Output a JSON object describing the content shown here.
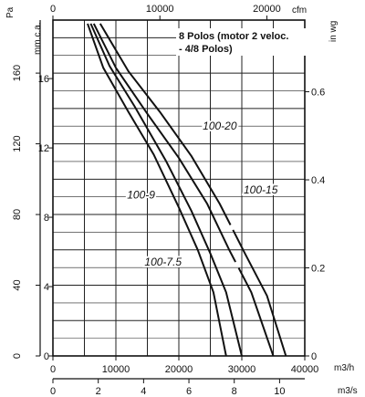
{
  "chart_data": {
    "type": "line",
    "note_lines": [
      "8 Polos (motor 2 veloc.",
      "- 4/8 Polos)"
    ],
    "axes": {
      "pa": {
        "unit": "Pa",
        "ticks": [
          "0",
          "40",
          "80",
          "120",
          "160"
        ],
        "values": [
          0,
          40,
          80,
          120,
          160
        ],
        "ylim": [
          0,
          190
        ]
      },
      "mmca": {
        "unit": "mm.c.a.",
        "ticks": [
          "0",
          "4",
          "8",
          "12",
          "16"
        ],
        "values": [
          0,
          4,
          8,
          12,
          16
        ]
      },
      "inwg": {
        "unit": "in wg",
        "ticks": [
          "0",
          "0.2",
          "0.4",
          "0.6"
        ],
        "values": [
          0,
          0.2,
          0.4,
          0.6
        ]
      },
      "cfm": {
        "unit": "cfm",
        "ticks": [
          "0",
          "10000",
          "20000"
        ],
        "values": [
          0,
          10000,
          20000
        ]
      },
      "m3h": {
        "unit": "m3/h",
        "ticks": [
          "0",
          "10000",
          "20000",
          "30000",
          "40000"
        ],
        "values": [
          0,
          10000,
          20000,
          30000,
          40000
        ],
        "xlim": [
          0,
          40000
        ]
      },
      "m3s": {
        "unit": "m3/s",
        "ticks": [
          "0",
          "2",
          "4",
          "6",
          "8",
          "10"
        ],
        "values": [
          0,
          2,
          4,
          6,
          8,
          10
        ]
      }
    },
    "grid": true,
    "series": [
      {
        "name": "100-7.5",
        "points": [
          [
            5500,
            188
          ],
          [
            8000,
            163
          ],
          [
            12000,
            138
          ],
          [
            16000,
            114
          ],
          [
            20000,
            84
          ],
          [
            23000,
            60
          ],
          [
            25500,
            36
          ],
          [
            27500,
            0
          ]
        ]
      },
      {
        "name": "100-9",
        "points": [
          [
            6000,
            188
          ],
          [
            9000,
            164
          ],
          [
            13000,
            141
          ],
          [
            18000,
            110
          ],
          [
            22000,
            82
          ],
          [
            25000,
            58
          ],
          [
            27500,
            36
          ],
          [
            30000,
            0
          ]
        ]
      },
      {
        "name": "100-15",
        "points": [
          [
            6500,
            188
          ],
          [
            10000,
            163
          ],
          [
            15000,
            137
          ],
          [
            20000,
            112
          ],
          [
            24500,
            86
          ],
          [
            28000,
            60
          ],
          [
            31500,
            36
          ],
          [
            35000,
            0
          ]
        ]
      },
      {
        "name": "100-20",
        "points": [
          [
            7500,
            188
          ],
          [
            12000,
            161
          ],
          [
            17000,
            138
          ],
          [
            22000,
            113
          ],
          [
            26500,
            86
          ],
          [
            30500,
            58
          ],
          [
            34000,
            34
          ],
          [
            37000,
            0
          ]
        ]
      }
    ],
    "series_segments": [
      {
        "series": "100-15",
        "from": 6500,
        "to": 29000,
        "break_to": 29500
      },
      {
        "series": "100-20",
        "from": 7500,
        "to": 28200,
        "break_to": 28600
      }
    ],
    "curve_labels": [
      {
        "text": "100-20",
        "series": "100-20",
        "near": [
          26500,
          128
        ]
      },
      {
        "text": "100-15",
        "series": "100-15",
        "near": [
          33000,
          92
        ]
      },
      {
        "text": "100-9",
        "series": "100-9",
        "near": [
          14000,
          89
        ]
      },
      {
        "text": "100-7.5",
        "series": "100-7.5",
        "near": [
          17500,
          51
        ]
      }
    ]
  }
}
